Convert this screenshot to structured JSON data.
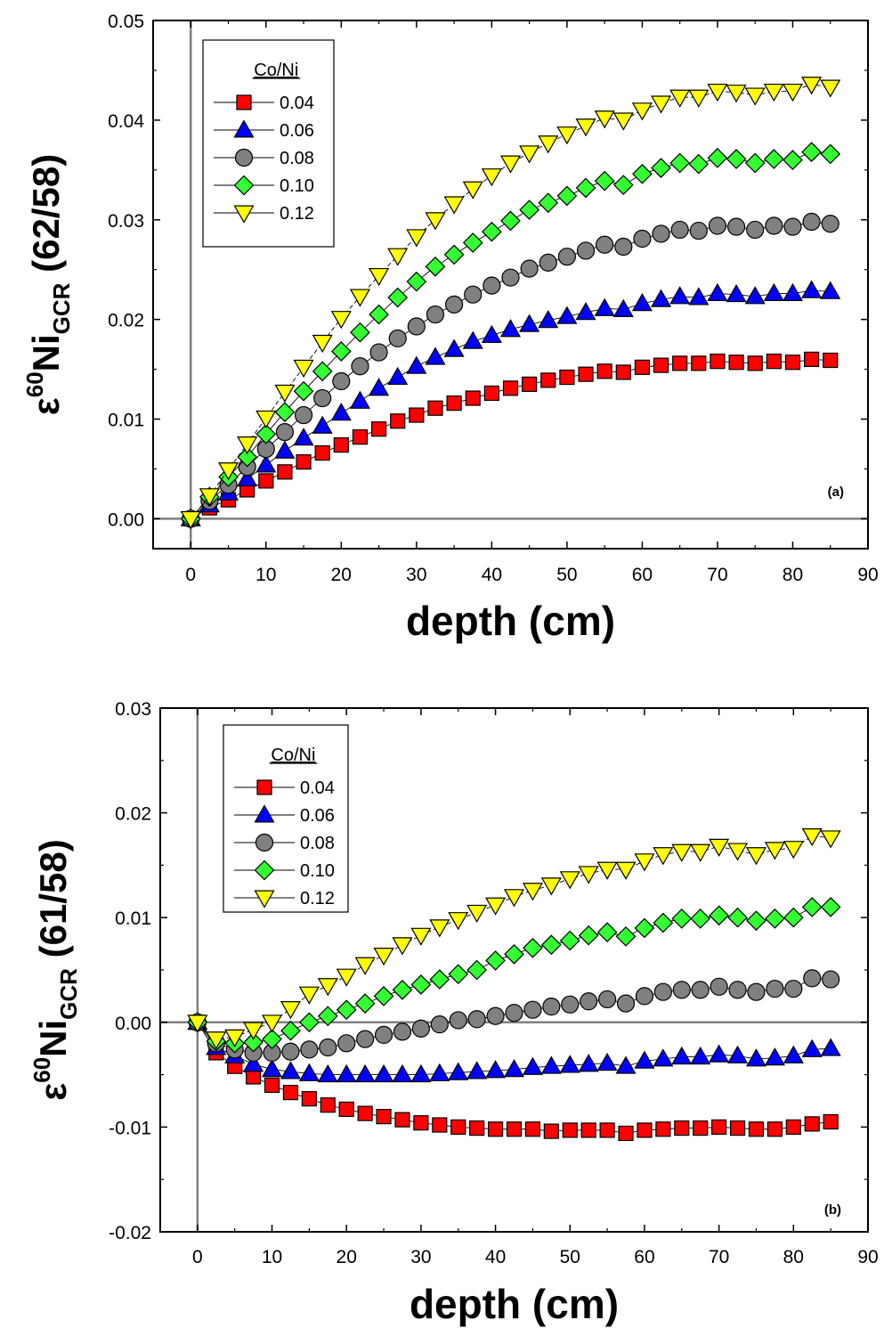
{
  "colors": {
    "c004": "#ff0000",
    "c006": "#0000ff",
    "c008": "#808080",
    "c010": "#33ff33",
    "c012": "#ffff00",
    "refline": "#808080"
  },
  "chart_data": [
    {
      "type": "scatter",
      "panel_label": "(a)",
      "xlabel": "depth (cm)",
      "ylabel_prefix": "ε",
      "ylabel_sup": "60",
      "ylabel_main": "Ni",
      "ylabel_sub": "GCR",
      "ylabel_suffix": " (62/58)",
      "xlim": [
        -5,
        90
      ],
      "ylim": [
        -0.003,
        0.05
      ],
      "xticks": [
        "0",
        "10",
        "20",
        "30",
        "40",
        "50",
        "60",
        "70",
        "80",
        "90"
      ],
      "yticks": [
        "0.00",
        "0.01",
        "0.02",
        "0.03",
        "0.04",
        "0.05"
      ],
      "ytick_values": [
        0,
        0.01,
        0.02,
        0.03,
        0.04,
        0.05
      ],
      "legend_title": "Co/Ni",
      "legend_position": "top-left",
      "x": [
        0,
        2.5,
        5,
        7.5,
        10,
        12.5,
        15,
        17.5,
        20,
        22.5,
        25,
        27.5,
        30,
        32.5,
        35,
        37.5,
        40,
        42.5,
        45,
        47.5,
        50,
        52.5,
        55,
        57.5,
        60,
        62.5,
        65,
        67.5,
        70,
        72.5,
        75,
        77.5,
        80,
        82.5,
        85
      ],
      "series": [
        {
          "name": "0.04",
          "marker": "square",
          "color": "#ff0000",
          "values": [
            0,
            0.0011,
            0.0019,
            0.0029,
            0.0038,
            0.0047,
            0.0057,
            0.0066,
            0.0074,
            0.0082,
            0.009,
            0.0098,
            0.0104,
            0.0111,
            0.0116,
            0.0121,
            0.0126,
            0.0131,
            0.0135,
            0.0139,
            0.0142,
            0.0145,
            0.0148,
            0.0147,
            0.0152,
            0.0154,
            0.0156,
            0.0156,
            0.0158,
            0.0157,
            0.0156,
            0.0158,
            0.0157,
            0.016,
            0.0159
          ]
        },
        {
          "name": "0.06",
          "marker": "triangle-up",
          "color": "#0000ff",
          "values": [
            0,
            0.0014,
            0.0026,
            0.004,
            0.0054,
            0.0068,
            0.0081,
            0.0093,
            0.0106,
            0.0118,
            0.0131,
            0.0142,
            0.0153,
            0.0162,
            0.017,
            0.0178,
            0.0184,
            0.019,
            0.0195,
            0.0199,
            0.0203,
            0.0207,
            0.0211,
            0.021,
            0.0216,
            0.022,
            0.0223,
            0.0222,
            0.0226,
            0.0225,
            0.0223,
            0.0226,
            0.0226,
            0.0229,
            0.0228
          ]
        },
        {
          "name": "0.08",
          "marker": "circle",
          "color": "#808080",
          "values": [
            0,
            0.0018,
            0.0034,
            0.0052,
            0.007,
            0.0087,
            0.0104,
            0.0121,
            0.0138,
            0.0153,
            0.0167,
            0.0181,
            0.0193,
            0.0205,
            0.0215,
            0.0225,
            0.0234,
            0.0242,
            0.0251,
            0.0257,
            0.0263,
            0.0269,
            0.0275,
            0.0273,
            0.0281,
            0.0286,
            0.029,
            0.0289,
            0.0294,
            0.0293,
            0.029,
            0.0294,
            0.0293,
            0.0298,
            0.0296
          ]
        },
        {
          "name": "0.10",
          "marker": "diamond",
          "color": "#33ff33",
          "values": [
            0,
            0.0022,
            0.0042,
            0.0062,
            0.0085,
            0.0107,
            0.0128,
            0.0148,
            0.0168,
            0.0187,
            0.0205,
            0.0222,
            0.0238,
            0.0253,
            0.0265,
            0.0277,
            0.0288,
            0.0299,
            0.031,
            0.0317,
            0.0324,
            0.0332,
            0.0339,
            0.0335,
            0.0346,
            0.0352,
            0.0357,
            0.0356,
            0.0362,
            0.0361,
            0.0357,
            0.0361,
            0.036,
            0.0368,
            0.0366
          ]
        },
        {
          "name": "0.12",
          "marker": "triangle-down",
          "color": "#ffff00",
          "values": [
            0,
            0.0023,
            0.0049,
            0.0075,
            0.0101,
            0.0127,
            0.0152,
            0.0177,
            0.0201,
            0.0223,
            0.0244,
            0.0264,
            0.0283,
            0.03,
            0.0316,
            0.0331,
            0.0344,
            0.0357,
            0.0367,
            0.0377,
            0.0386,
            0.0394,
            0.0402,
            0.04,
            0.041,
            0.0417,
            0.0423,
            0.0423,
            0.0429,
            0.0428,
            0.0425,
            0.0429,
            0.0429,
            0.0436,
            0.0433
          ]
        }
      ]
    },
    {
      "type": "scatter",
      "panel_label": "(b)",
      "xlabel": "depth (cm)",
      "ylabel_prefix": "ε",
      "ylabel_sup": "60",
      "ylabel_main": "Ni",
      "ylabel_sub": "GCR",
      "ylabel_suffix": " (61/58)",
      "xlim": [
        -5,
        90
      ],
      "ylim": [
        -0.02,
        0.03
      ],
      "xticks": [
        "0",
        "10",
        "20",
        "30",
        "40",
        "50",
        "60",
        "70",
        "80",
        "90"
      ],
      "yticks": [
        "-0.02",
        "-0.01",
        "0.00",
        "0.01",
        "0.02",
        "0.03"
      ],
      "ytick_values": [
        -0.02,
        -0.01,
        0,
        0.01,
        0.02,
        0.03
      ],
      "legend_title": "Co/Ni",
      "legend_position": "top-left",
      "x": [
        0,
        2.5,
        5,
        7.5,
        10,
        12.5,
        15,
        17.5,
        20,
        22.5,
        25,
        27.5,
        30,
        32.5,
        35,
        37.5,
        40,
        42.5,
        45,
        47.5,
        50,
        52.5,
        55,
        57.5,
        60,
        62.5,
        65,
        67.5,
        70,
        72.5,
        75,
        77.5,
        80,
        82.5,
        85
      ],
      "series": [
        {
          "name": "0.04",
          "marker": "square",
          "color": "#ff0000",
          "values": [
            0,
            -0.0029,
            -0.0042,
            -0.0052,
            -0.006,
            -0.0067,
            -0.0073,
            -0.0079,
            -0.0083,
            -0.0087,
            -0.009,
            -0.0093,
            -0.0096,
            -0.0098,
            -0.01,
            -0.0101,
            -0.0102,
            -0.0102,
            -0.0102,
            -0.0104,
            -0.0103,
            -0.0103,
            -0.0103,
            -0.0106,
            -0.0103,
            -0.0102,
            -0.0101,
            -0.0101,
            -0.01,
            -0.0101,
            -0.0102,
            -0.0102,
            -0.01,
            -0.0097,
            -0.0095
          ]
        },
        {
          "name": "0.06",
          "marker": "triangle-up",
          "color": "#0000ff",
          "values": [
            0,
            -0.0024,
            -0.0032,
            -0.004,
            -0.0045,
            -0.0047,
            -0.0049,
            -0.005,
            -0.005,
            -0.005,
            -0.005,
            -0.005,
            -0.005,
            -0.0049,
            -0.0048,
            -0.0047,
            -0.0046,
            -0.0045,
            -0.0043,
            -0.0042,
            -0.0041,
            -0.004,
            -0.0039,
            -0.0042,
            -0.0037,
            -0.0035,
            -0.0033,
            -0.0033,
            -0.0031,
            -0.0032,
            -0.0035,
            -0.0034,
            -0.0032,
            -0.0026,
            -0.0025
          ]
        },
        {
          "name": "0.08",
          "marker": "circle",
          "color": "#808080",
          "values": [
            0,
            -0.002,
            -0.0026,
            -0.0029,
            -0.0029,
            -0.0028,
            -0.0026,
            -0.0024,
            -0.002,
            -0.0016,
            -0.0012,
            -0.0009,
            -0.0006,
            -0.0002,
            0.0002,
            0.0003,
            0.0006,
            0.0009,
            0.0012,
            0.0015,
            0.0017,
            0.002,
            0.0022,
            0.0018,
            0.0025,
            0.0029,
            0.0031,
            0.0031,
            0.0034,
            0.0031,
            0.0029,
            0.0032,
            0.0032,
            0.0042,
            0.0041
          ]
        },
        {
          "name": "0.10",
          "marker": "diamond",
          "color": "#33ff33",
          "values": [
            0,
            -0.0018,
            -0.002,
            -0.0019,
            -0.0016,
            -0.0008,
            0.0,
            0.0006,
            0.0012,
            0.0018,
            0.0025,
            0.0031,
            0.0036,
            0.0041,
            0.0046,
            0.005,
            0.0059,
            0.0065,
            0.0071,
            0.0074,
            0.0078,
            0.0083,
            0.0086,
            0.0082,
            0.009,
            0.0095,
            0.0099,
            0.0099,
            0.0102,
            0.01,
            0.0097,
            0.0099,
            0.01,
            0.011,
            0.011
          ]
        },
        {
          "name": "0.12",
          "marker": "triangle-down",
          "color": "#ffff00",
          "values": [
            0,
            -0.0016,
            -0.0014,
            -0.0007,
            0.0,
            0.0013,
            0.0027,
            0.0035,
            0.0044,
            0.0055,
            0.0064,
            0.0074,
            0.0083,
            0.0091,
            0.0098,
            0.0105,
            0.0112,
            0.012,
            0.0126,
            0.0131,
            0.0137,
            0.0142,
            0.0146,
            0.0146,
            0.0154,
            0.016,
            0.0163,
            0.0163,
            0.0168,
            0.0164,
            0.016,
            0.0165,
            0.0166,
            0.0178,
            0.0176
          ]
        }
      ]
    }
  ]
}
